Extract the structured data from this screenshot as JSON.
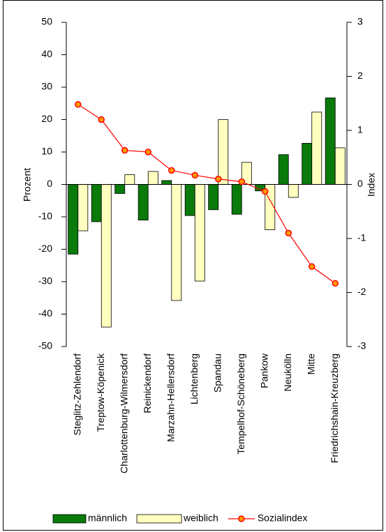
{
  "chart_data": {
    "type": "bar",
    "categories": [
      "Steglitz-Zehlendorf",
      "Treptow-Köpenick",
      "Charlottenburg-Wilmersdorf",
      "Reinickendorf",
      "Marzahn-Hellersdorf",
      "Lichtenberg",
      "Spandau",
      "Tempelhof-Schöneberg",
      "Pankow",
      "Neukölln",
      "Mitte",
      "Friedrichshain-Kreuzberg"
    ],
    "series": [
      {
        "name": "männlich",
        "color": "#0a7a0a",
        "type": "bar",
        "values": [
          -21.5,
          -11.5,
          -2.8,
          -11,
          1.2,
          -9.6,
          -7.8,
          -9.2,
          -2,
          9.2,
          12.7,
          26.7
        ]
      },
      {
        "name": "weiblich",
        "color": "#ffffc0",
        "type": "bar",
        "values": [
          -14.3,
          -44,
          3,
          4,
          -35.8,
          -29.8,
          20,
          6.8,
          -14,
          -4,
          22.3,
          11.3
        ]
      },
      {
        "name": "Sozialindex",
        "color": "#ff0000",
        "type": "line",
        "axis": "y2",
        "values": [
          1.48,
          1.2,
          0.63,
          0.6,
          0.26,
          0.17,
          0.1,
          0.05,
          -0.13,
          -0.9,
          -1.52,
          -1.83
        ]
      }
    ],
    "y_label": "Prozent",
    "y2_label": "Index",
    "ylim": [
      -50,
      50
    ],
    "yticks": [
      -50,
      -40,
      -30,
      -20,
      -10,
      0,
      10,
      20,
      30,
      40,
      50
    ],
    "y2lim": [
      -3,
      3
    ],
    "y2ticks": [
      -3,
      -2,
      -1,
      0,
      1,
      2,
      3
    ],
    "grid": false,
    "legend": "bottom"
  }
}
